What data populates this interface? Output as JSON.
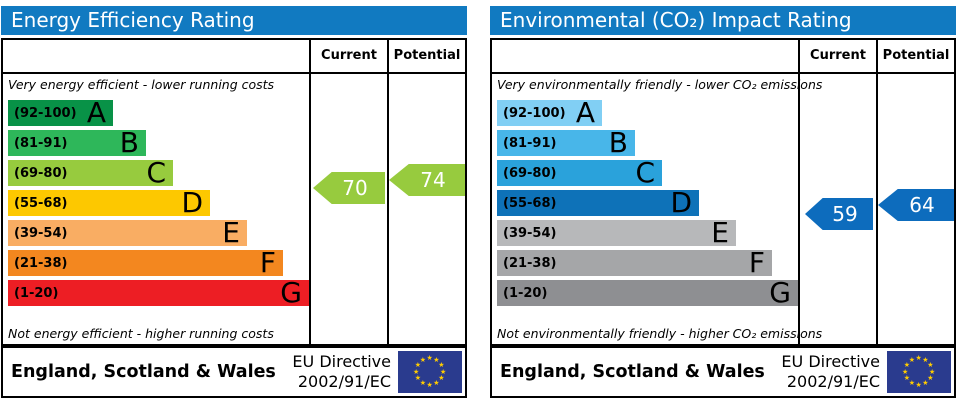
{
  "theme": {
    "header_bg": "#117ac1",
    "flag_bg": "#2a3b8e",
    "star_color": "#ffcc00",
    "border_color": "#000000"
  },
  "panels": [
    {
      "title": "Energy Efficiency Rating",
      "columns": {
        "current": "Current",
        "potential": "Potential"
      },
      "top_note": "Very energy efficient - lower running costs",
      "bottom_note": "Not energy efficient - higher running costs",
      "bands": [
        {
          "range": "(92-100)",
          "letter": "A",
          "color": "#089247"
        },
        {
          "range": "(81-91)",
          "letter": "B",
          "color": "#2eb75a"
        },
        {
          "range": "(69-80)",
          "letter": "C",
          "color": "#97cb3e"
        },
        {
          "range": "(55-68)",
          "letter": "D",
          "color": "#fdc800"
        },
        {
          "range": "(39-54)",
          "letter": "E",
          "color": "#f9ad63"
        },
        {
          "range": "(21-38)",
          "letter": "F",
          "color": "#f3871f"
        },
        {
          "range": "(1-20)",
          "letter": "G",
          "color": "#ed1e24"
        }
      ],
      "current": {
        "value": "70",
        "color": "#97cb3e"
      },
      "potential": {
        "value": "74",
        "color": "#97cb3e"
      },
      "footer": {
        "region": "England, Scotland & Wales",
        "directive_line1": "EU Directive",
        "directive_line2": "2002/91/EC"
      }
    },
    {
      "title": "Environmental (CO₂) Impact Rating",
      "columns": {
        "current": "Current",
        "potential": "Potential"
      },
      "top_note": "Very environmentally friendly - lower CO₂ emissions",
      "bottom_note": "Not environmentally friendly - higher CO₂ emissions",
      "bands": [
        {
          "range": "(92-100)",
          "letter": "A",
          "color": "#81cff4"
        },
        {
          "range": "(81-91)",
          "letter": "B",
          "color": "#48b6e9"
        },
        {
          "range": "(69-80)",
          "letter": "C",
          "color": "#2aa2db"
        },
        {
          "range": "(55-68)",
          "letter": "D",
          "color": "#0e72b8"
        },
        {
          "range": "(39-54)",
          "letter": "E",
          "color": "#b7b8ba"
        },
        {
          "range": "(21-38)",
          "letter": "F",
          "color": "#a5a6a8"
        },
        {
          "range": "(1-20)",
          "letter": "G",
          "color": "#8e8f92"
        }
      ],
      "current": {
        "value": "59",
        "color": "#0d6cbd"
      },
      "potential": {
        "value": "64",
        "color": "#0d6cbd"
      },
      "footer": {
        "region": "England, Scotland & Wales",
        "directive_line1": "EU Directive",
        "directive_line2": "2002/91/EC"
      }
    }
  ],
  "chart_data": [
    {
      "type": "bar",
      "title": "Energy Efficiency Rating",
      "categories": [
        "A",
        "B",
        "C",
        "D",
        "E",
        "F",
        "G"
      ],
      "band_ranges": [
        "92-100",
        "81-91",
        "69-80",
        "55-68",
        "39-54",
        "21-38",
        "1-20"
      ],
      "band_colors": [
        "#089247",
        "#2eb75a",
        "#97cb3e",
        "#fdc800",
        "#f9ad63",
        "#f3871f",
        "#ed1e24"
      ],
      "values": [
        110,
        143,
        170,
        207,
        244,
        280,
        308
      ],
      "current": 70,
      "current_band": "C",
      "potential": 74,
      "potential_band": "C",
      "xlabel": "",
      "ylabel": "",
      "annotations": [
        "Very energy efficient - lower running costs",
        "Not energy efficient - higher running costs",
        "England, Scotland & Wales",
        "EU Directive 2002/91/EC"
      ]
    },
    {
      "type": "bar",
      "title": "Environmental (CO₂) Impact Rating",
      "categories": [
        "A",
        "B",
        "C",
        "D",
        "E",
        "F",
        "G"
      ],
      "band_ranges": [
        "92-100",
        "81-91",
        "69-80",
        "55-68",
        "39-54",
        "21-38",
        "1-20"
      ],
      "band_colors": [
        "#81cff4",
        "#48b6e9",
        "#2aa2db",
        "#0e72b8",
        "#b7b8ba",
        "#a5a6a8",
        "#8e8f92"
      ],
      "values": [
        110,
        143,
        170,
        207,
        244,
        280,
        308
      ],
      "current": 59,
      "current_band": "D",
      "potential": 64,
      "potential_band": "D",
      "xlabel": "",
      "ylabel": "",
      "annotations": [
        "Very environmentally friendly - lower CO₂ emissions",
        "Not environmentally friendly - higher CO₂ emissions",
        "England, Scotland & Wales",
        "EU Directive 2002/91/EC"
      ]
    }
  ]
}
